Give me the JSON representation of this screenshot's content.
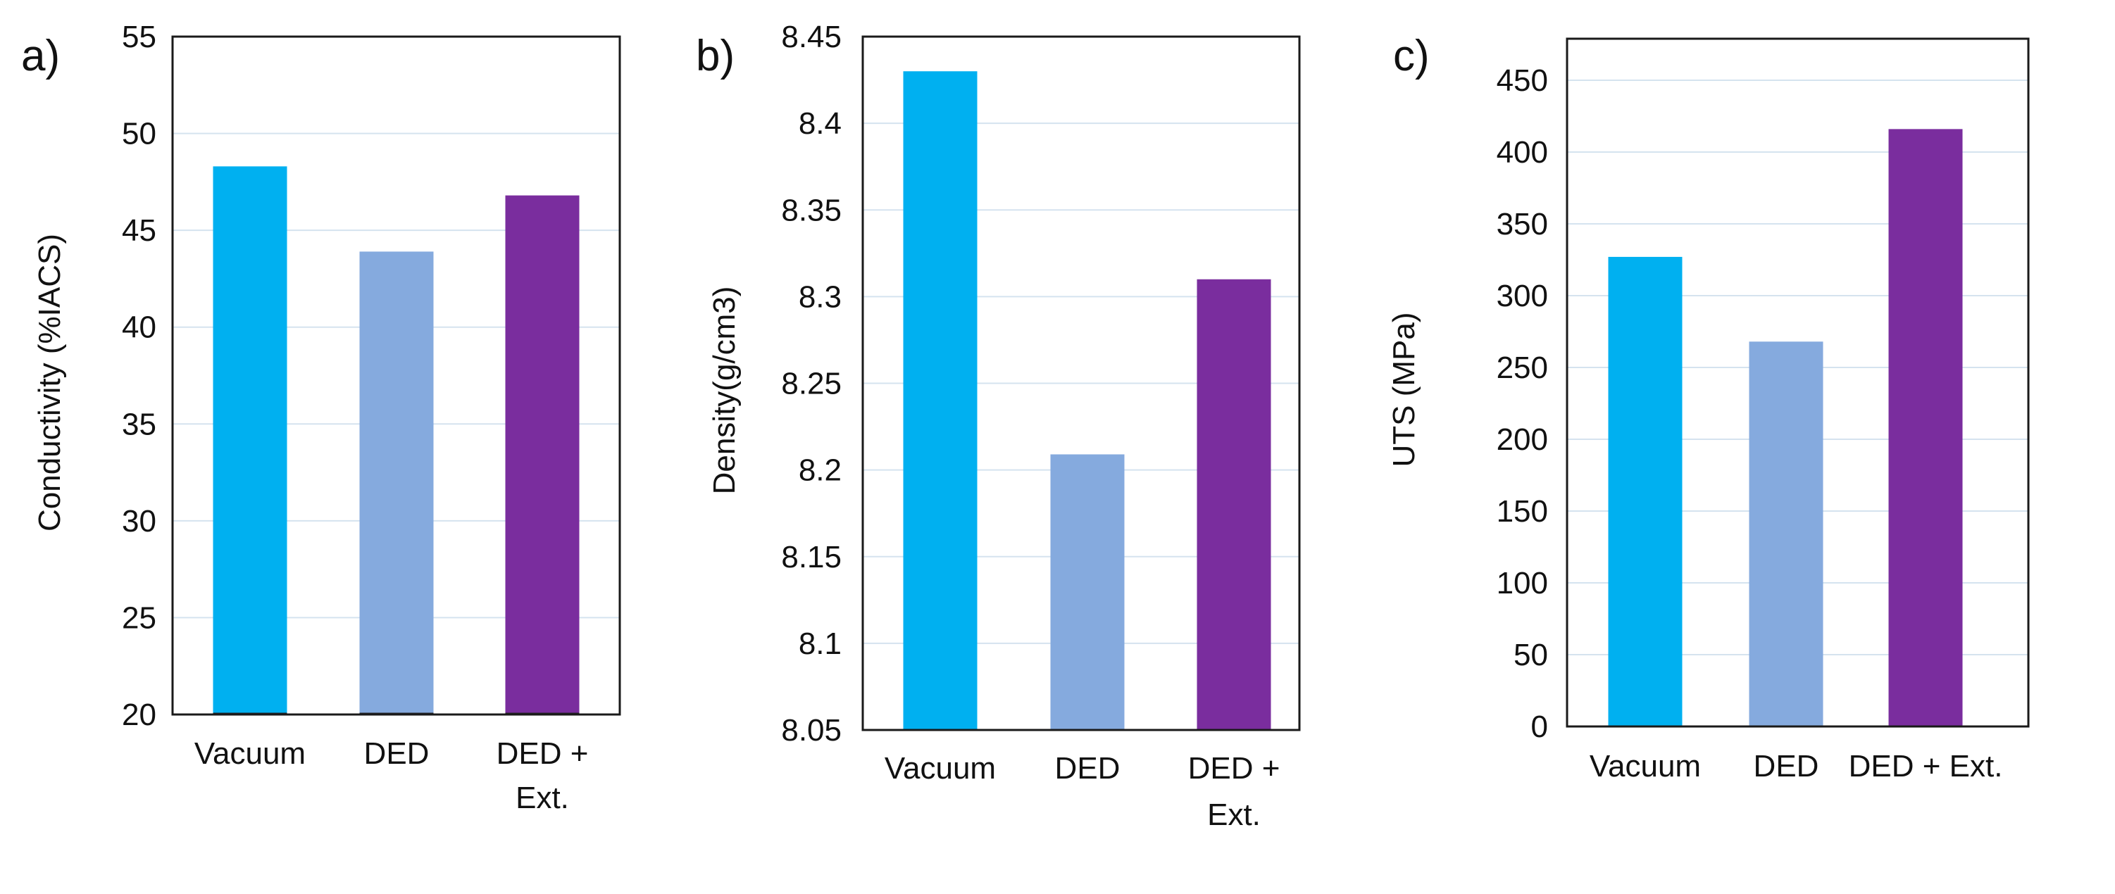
{
  "colors": {
    "vacuum": "#00b0f0",
    "ded": "#85aade",
    "ded_ext": "#7a2d9e",
    "gridline": "#d5e3ef",
    "frame": "#1a1a1a"
  },
  "chart_data": [
    {
      "type": "bar",
      "panel": "a)",
      "ylabel": "Conductivity (%IACS)",
      "categories": [
        [
          "Vacuum"
        ],
        [
          "DED"
        ],
        [
          "DED +",
          "Ext."
        ]
      ],
      "values": [
        48.3,
        43.9,
        46.8
      ],
      "ylim": [
        20,
        55
      ],
      "yticks": [
        "20",
        "25",
        "30",
        "35",
        "40",
        "45",
        "50",
        "55"
      ],
      "grid": true
    },
    {
      "type": "bar",
      "panel": "b)",
      "ylabel": "Density(g/cm3)",
      "categories": [
        [
          "Vacuum"
        ],
        [
          "DED"
        ],
        [
          "DED +",
          "Ext."
        ]
      ],
      "values": [
        8.43,
        8.209,
        8.31
      ],
      "ylim": [
        8.05,
        8.45
      ],
      "yticks": [
        "8.05",
        "8.1",
        "8.15",
        "8.2",
        "8.25",
        "8.3",
        "8.35",
        "8.4",
        "8.45"
      ],
      "grid": true
    },
    {
      "type": "bar",
      "panel": "c)",
      "ylabel": "UTS (MPa)",
      "categories": [
        [
          "Vacuum"
        ],
        [
          "DED"
        ],
        [
          "DED + Ext."
        ]
      ],
      "values": [
        327,
        268,
        416
      ],
      "ylim": [
        0,
        475
      ],
      "yticks": [
        "0",
        "50",
        "100",
        "150",
        "200",
        "250",
        "300",
        "350",
        "400",
        "450"
      ],
      "grid": true
    }
  ]
}
